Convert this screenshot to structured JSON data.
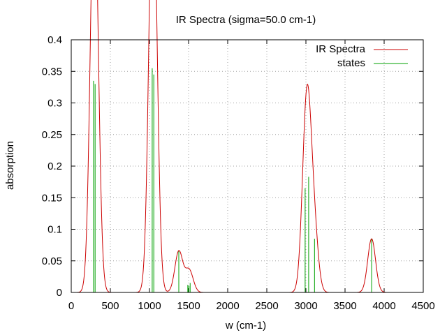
{
  "chart_data": {
    "type": "line",
    "title": "IR Spectra (sigma=50.0 cm-1)",
    "xlabel": "w (cm-1)",
    "ylabel": "absorption",
    "xlim": [
      0,
      4500
    ],
    "ylim": [
      0,
      0.4
    ],
    "xticks": [
      0,
      500,
      1000,
      1500,
      2000,
      2500,
      3000,
      3500,
      4000,
      4500
    ],
    "yticks": [
      0,
      0.05,
      0.1,
      0.15,
      0.2,
      0.25,
      0.3,
      0.35,
      0.4
    ],
    "xtick_labels": [
      "0",
      "500",
      "1000",
      "1500",
      "2000",
      "2500",
      "3000",
      "3500",
      "4000",
      "4500"
    ],
    "ytick_labels": [
      "0",
      "0.05",
      "0.1",
      "0.15",
      "0.2",
      "0.25",
      "0.3",
      "0.35",
      "0.4"
    ],
    "grid": true,
    "legend_position": "top-right",
    "sigma": 50.0,
    "series": [
      {
        "name": "IR Spectra",
        "kind": "line",
        "color": "#cc0000",
        "description_of_source": "sum of Gaussian broadened states"
      },
      {
        "name": "states",
        "kind": "impulses",
        "color": "#00a000",
        "points": [
          {
            "x": 285,
            "y": 0.335
          },
          {
            "x": 305,
            "y": 0.33
          },
          {
            "x": 1035,
            "y": 0.355
          },
          {
            "x": 1055,
            "y": 0.345
          },
          {
            "x": 1375,
            "y": 0.065
          },
          {
            "x": 1490,
            "y": 0.012
          },
          {
            "x": 1505,
            "y": 0.01
          },
          {
            "x": 1520,
            "y": 0.015
          },
          {
            "x": 2990,
            "y": 0.165
          },
          {
            "x": 3035,
            "y": 0.183
          },
          {
            "x": 3110,
            "y": 0.085
          },
          {
            "x": 3840,
            "y": 0.085
          }
        ]
      }
    ]
  }
}
